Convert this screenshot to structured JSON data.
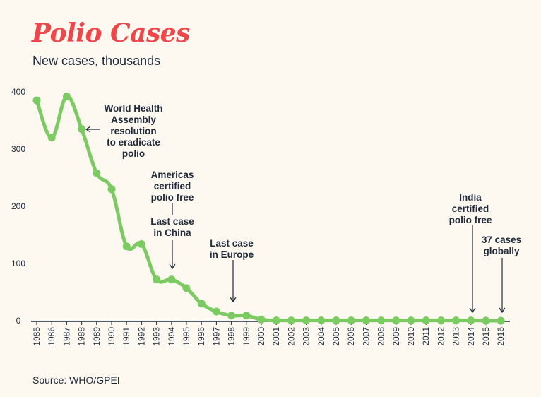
{
  "header": {
    "title": "Polio Cases",
    "subtitle": "New cases, thousands"
  },
  "footer": {
    "source": "Source: WHO/GPEI"
  },
  "colors": {
    "line": "#7ccb62",
    "title": "#f0464a",
    "text": "#1f2a3a",
    "background": "#fdf8f0"
  },
  "chart_data": {
    "type": "line",
    "title": "Polio Cases",
    "subtitle": "New cases, thousands",
    "xlabel": "",
    "ylabel": "",
    "ylim": [
      0,
      400
    ],
    "yticks": [
      0,
      100,
      200,
      300,
      400
    ],
    "grid": false,
    "x": [
      "1985",
      "1986",
      "1987",
      "1988",
      "1989",
      "1990",
      "1991",
      "1992",
      "1993",
      "1994",
      "1995",
      "1996",
      "1997",
      "1998",
      "1999",
      "2000",
      "2001",
      "2002",
      "2003",
      "2004",
      "2005",
      "2006",
      "2007",
      "2008",
      "2009",
      "2010",
      "2011",
      "2012",
      "2013",
      "2014",
      "2015",
      "2016"
    ],
    "series": [
      {
        "values": [
          385,
          320,
          392,
          335,
          258,
          230,
          130,
          134,
          72,
          72,
          57,
          30,
          16,
          9,
          9,
          2,
          0.5,
          0.5,
          0.5,
          0.5,
          0.5,
          0.5,
          0.5,
          0.5,
          0.5,
          0.5,
          0.5,
          0.5,
          0.5,
          0.5,
          0.1,
          0.037
        ]
      }
    ],
    "annotations": [
      {
        "x": "1988",
        "lines": [
          "World Health",
          "Assembly",
          "resolution",
          "to eradicate",
          "polio"
        ]
      },
      {
        "x": "1994",
        "lines": [
          "Americas",
          "certified",
          "polio free"
        ]
      },
      {
        "x": "1994",
        "lines": [
          "Last case",
          "in China"
        ]
      },
      {
        "x": "1998",
        "lines": [
          "Last case",
          "in Europe"
        ]
      },
      {
        "x": "2014",
        "lines": [
          "India",
          "certified",
          "polio free"
        ]
      },
      {
        "x": "2016",
        "lines": [
          "37 cases",
          "globally"
        ]
      }
    ]
  }
}
